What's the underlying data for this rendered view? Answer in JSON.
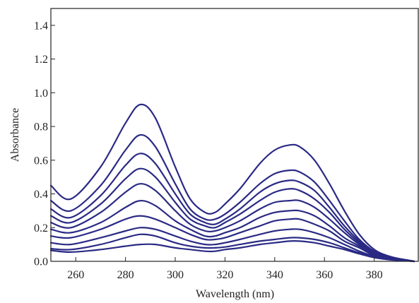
{
  "chart_data": {
    "type": "line",
    "title": "",
    "xlabel": "Wavelength (nm)",
    "ylabel": "Absorbance",
    "xlim": [
      250,
      398
    ],
    "ylim": [
      0.0,
      1.5
    ],
    "x_ticks": [
      260,
      280,
      300,
      320,
      340,
      360,
      380
    ],
    "x_tick_labels": [
      "260",
      "280",
      "300",
      "320",
      "340",
      "360",
      "380"
    ],
    "y_ticks": [
      0.0,
      0.2,
      0.4,
      0.6,
      0.8,
      1.0,
      1.2,
      1.4
    ],
    "y_tick_labels": [
      "0.0",
      "0.2",
      "0.4",
      "0.6",
      "0.8",
      "1.0",
      "1.2",
      "1.4"
    ],
    "grid": false,
    "legend": "none",
    "line_color": "#2a2a85",
    "x": [
      250,
      258,
      270,
      280,
      286,
      292,
      300,
      306,
      312,
      316,
      320,
      326,
      334,
      340,
      346,
      350,
      356,
      362,
      368,
      374,
      380,
      386,
      392,
      396
    ],
    "series": [
      {
        "values": [
          0.45,
          0.37,
          0.56,
          0.82,
          0.93,
          0.85,
          0.56,
          0.37,
          0.29,
          0.29,
          0.34,
          0.43,
          0.58,
          0.66,
          0.69,
          0.68,
          0.6,
          0.46,
          0.3,
          0.16,
          0.07,
          0.03,
          0.01,
          0.0
        ]
      },
      {
        "values": [
          0.36,
          0.3,
          0.45,
          0.66,
          0.75,
          0.68,
          0.46,
          0.31,
          0.25,
          0.25,
          0.28,
          0.35,
          0.46,
          0.52,
          0.54,
          0.53,
          0.47,
          0.36,
          0.24,
          0.13,
          0.06,
          0.025,
          0.01,
          0.0
        ]
      },
      {
        "values": [
          0.31,
          0.26,
          0.39,
          0.57,
          0.64,
          0.58,
          0.4,
          0.28,
          0.23,
          0.22,
          0.25,
          0.31,
          0.41,
          0.46,
          0.48,
          0.47,
          0.42,
          0.32,
          0.21,
          0.12,
          0.055,
          0.025,
          0.01,
          0.0
        ]
      },
      {
        "values": [
          0.27,
          0.23,
          0.34,
          0.49,
          0.55,
          0.5,
          0.35,
          0.25,
          0.21,
          0.2,
          0.23,
          0.28,
          0.36,
          0.41,
          0.43,
          0.42,
          0.37,
          0.29,
          0.19,
          0.11,
          0.05,
          0.022,
          0.01,
          0.0
        ]
      },
      {
        "values": [
          0.23,
          0.2,
          0.29,
          0.41,
          0.46,
          0.42,
          0.3,
          0.22,
          0.18,
          0.18,
          0.2,
          0.24,
          0.31,
          0.35,
          0.36,
          0.36,
          0.32,
          0.25,
          0.17,
          0.1,
          0.045,
          0.02,
          0.01,
          0.0
        ]
      },
      {
        "values": [
          0.19,
          0.17,
          0.23,
          0.32,
          0.36,
          0.33,
          0.24,
          0.19,
          0.15,
          0.15,
          0.17,
          0.2,
          0.26,
          0.29,
          0.3,
          0.3,
          0.27,
          0.21,
          0.14,
          0.09,
          0.04,
          0.018,
          0.008,
          0.0
        ]
      },
      {
        "values": [
          0.15,
          0.14,
          0.19,
          0.25,
          0.27,
          0.25,
          0.2,
          0.16,
          0.13,
          0.13,
          0.14,
          0.17,
          0.21,
          0.24,
          0.25,
          0.25,
          0.22,
          0.18,
          0.12,
          0.08,
          0.035,
          0.016,
          0.007,
          0.0
        ]
      },
      {
        "values": [
          0.11,
          0.1,
          0.14,
          0.18,
          0.2,
          0.19,
          0.15,
          0.12,
          0.1,
          0.1,
          0.11,
          0.13,
          0.16,
          0.18,
          0.19,
          0.19,
          0.17,
          0.14,
          0.1,
          0.06,
          0.03,
          0.014,
          0.006,
          0.0
        ]
      },
      {
        "values": [
          0.075,
          0.07,
          0.1,
          0.14,
          0.16,
          0.15,
          0.11,
          0.09,
          0.08,
          0.08,
          0.085,
          0.1,
          0.12,
          0.13,
          0.14,
          0.14,
          0.13,
          0.11,
          0.08,
          0.05,
          0.025,
          0.012,
          0.005,
          0.0
        ]
      },
      {
        "values": [
          0.065,
          0.055,
          0.07,
          0.09,
          0.1,
          0.1,
          0.08,
          0.07,
          0.06,
          0.06,
          0.07,
          0.08,
          0.1,
          0.11,
          0.12,
          0.12,
          0.11,
          0.09,
          0.07,
          0.045,
          0.022,
          0.01,
          0.004,
          0.0
        ]
      }
    ]
  }
}
